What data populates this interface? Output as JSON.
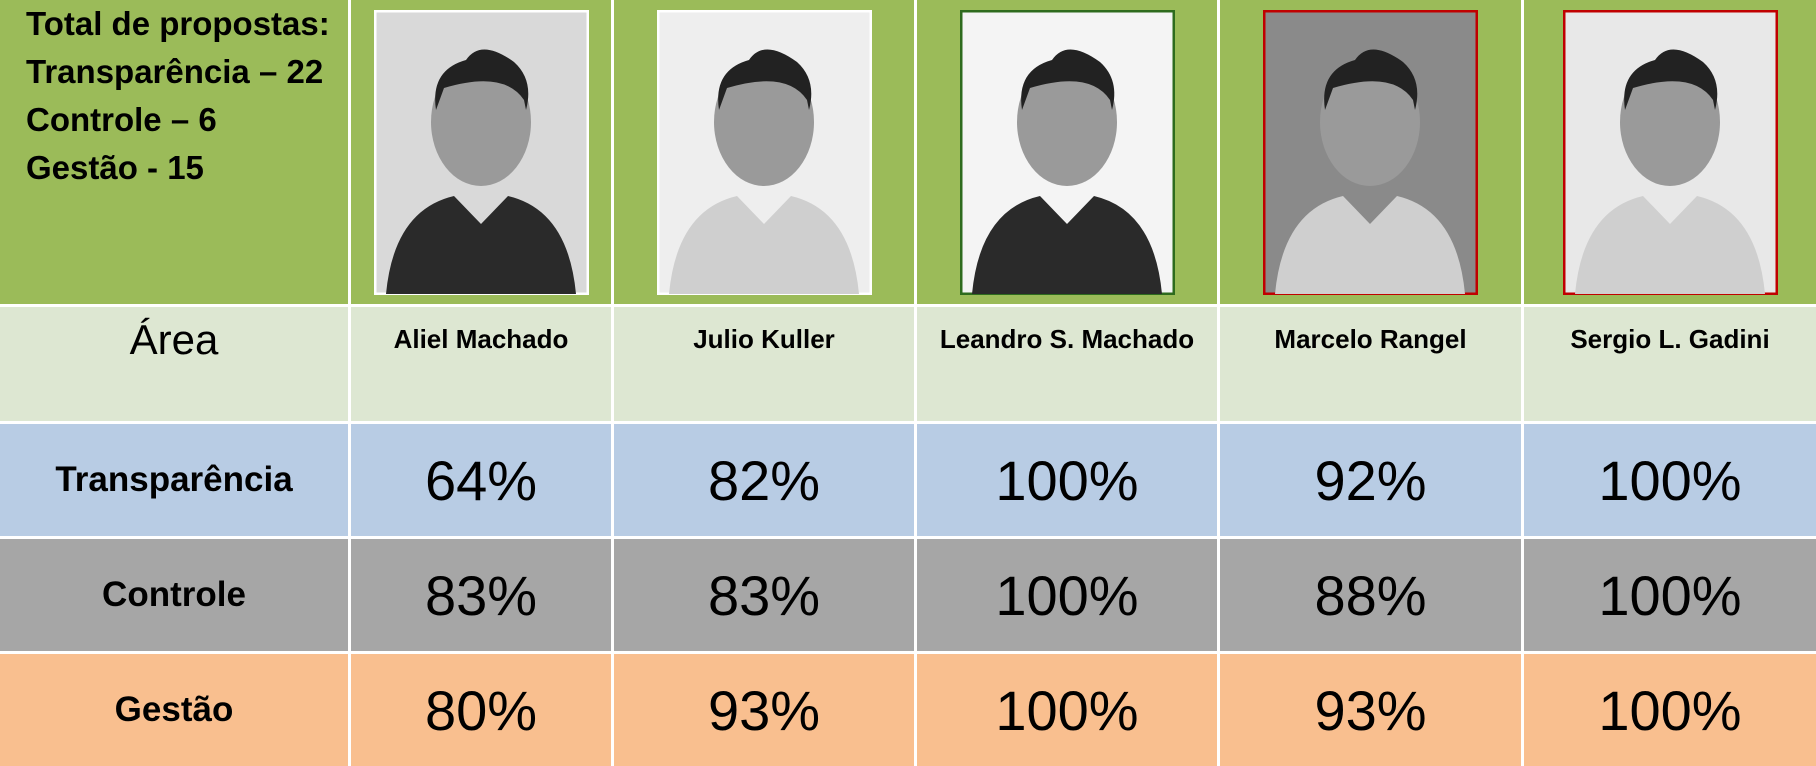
{
  "summary": [
    "Total de propostas:",
    "Transparência – 22",
    "Controle – 6",
    "Gestão - 15"
  ],
  "table": {
    "header": [
      "Área",
      "Aliel Machado",
      "Julio Kuller",
      "Leandro S. Machado",
      "Marcelo Rangel",
      "Sergio L. Gadini"
    ],
    "rows": [
      [
        "Transparência",
        "64%",
        "82%",
        "100%",
        "92%",
        "100%"
      ],
      [
        "Controle",
        "83%",
        "83%",
        "100%",
        "88%",
        "100%"
      ],
      [
        "Gestão",
        "80%",
        "93%",
        "100%",
        "93%",
        "100%"
      ]
    ]
  }
}
